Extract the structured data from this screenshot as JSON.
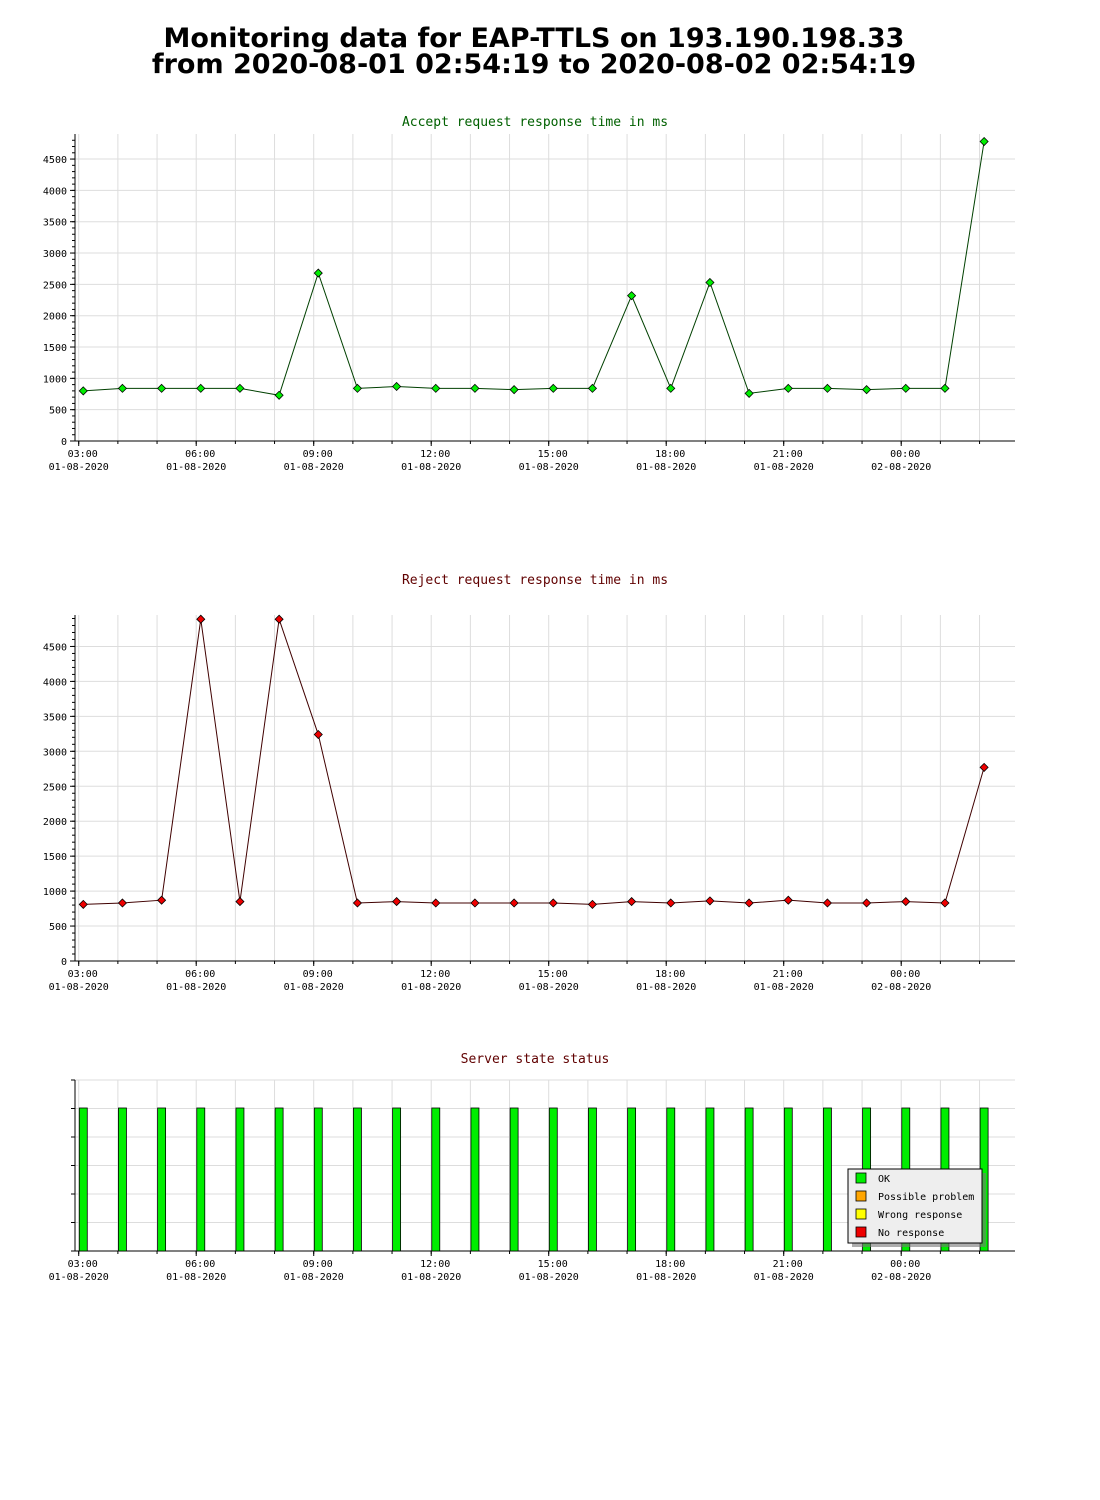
{
  "header": {
    "title_line1": "Monitoring data for EAP-TTLS on 193.190.198.33",
    "title_line2": "from 2020-08-01 02:54:19 to 2020-08-02 02:54:19"
  },
  "colors": {
    "accept_line": "#004000",
    "accept_marker": "#00ee00",
    "reject_line": "#400000",
    "reject_marker": "#ee0000",
    "ok": "#00ee00",
    "possible_problem": "#ffa500",
    "wrong_response": "#ffff00",
    "no_response": "#ee0000",
    "accept_title": "#006000",
    "reject_title": "#600000",
    "grid": "#dddddd"
  },
  "x_ticks": [
    {
      "time": "03:00",
      "date": "01-08-2020"
    },
    {
      "time": "06:00",
      "date": "01-08-2020"
    },
    {
      "time": "09:00",
      "date": "01-08-2020"
    },
    {
      "time": "12:00",
      "date": "01-08-2020"
    },
    {
      "time": "15:00",
      "date": "01-08-2020"
    },
    {
      "time": "18:00",
      "date": "01-08-2020"
    },
    {
      "time": "21:00",
      "date": "01-08-2020"
    },
    {
      "time": "00:00",
      "date": "02-08-2020"
    }
  ],
  "chart_data": [
    {
      "type": "line",
      "title": "Accept request response time in ms",
      "x_start": "2020-08-01 02:54:19",
      "x_end": "2020-08-02 02:54:19",
      "ylim": [
        0,
        4900
      ],
      "y_ticks": [
        0,
        500,
        1000,
        1500,
        2000,
        2500,
        3000,
        3500,
        4000,
        4500
      ],
      "grid": true,
      "x": [
        "03:00",
        "04:00",
        "05:00",
        "06:00",
        "07:00",
        "08:00",
        "09:00",
        "10:00",
        "11:00",
        "12:00",
        "13:00",
        "14:00",
        "15:00",
        "16:00",
        "17:00",
        "18:00",
        "19:00",
        "20:00",
        "21:00",
        "22:00",
        "23:00",
        "00:00",
        "01:00",
        "02:00"
      ],
      "values": [
        800,
        840,
        840,
        840,
        840,
        730,
        2680,
        840,
        870,
        840,
        840,
        820,
        840,
        840,
        2320,
        840,
        2530,
        760,
        840,
        840,
        820,
        840,
        840,
        4780
      ]
    },
    {
      "type": "line",
      "title": "Reject request response time in ms",
      "x_start": "2020-08-01 02:54:19",
      "x_end": "2020-08-02 02:54:19",
      "ylim": [
        0,
        4950
      ],
      "y_ticks": [
        0,
        500,
        1000,
        1500,
        2000,
        2500,
        3000,
        3500,
        4000,
        4500
      ],
      "grid": true,
      "x": [
        "03:00",
        "04:00",
        "05:00",
        "06:00",
        "07:00",
        "08:00",
        "09:00",
        "10:00",
        "11:00",
        "12:00",
        "13:00",
        "14:00",
        "15:00",
        "16:00",
        "17:00",
        "18:00",
        "19:00",
        "20:00",
        "21:00",
        "22:00",
        "23:00",
        "00:00",
        "01:00",
        "02:00"
      ],
      "values": [
        810,
        830,
        870,
        4890,
        850,
        4890,
        3240,
        830,
        850,
        830,
        830,
        830,
        830,
        810,
        850,
        830,
        860,
        830,
        870,
        830,
        830,
        850,
        830,
        2770
      ]
    },
    {
      "type": "bar",
      "title": "Server state status",
      "x_start": "2020-08-01 02:54:19",
      "x_end": "2020-08-02 02:54:19",
      "grid": true,
      "legend_position": "bottom-right",
      "legend": [
        "OK",
        "Possible problem",
        "Wrong response",
        "No response"
      ],
      "x": [
        "03:00",
        "04:00",
        "05:00",
        "06:00",
        "07:00",
        "08:00",
        "09:00",
        "10:00",
        "11:00",
        "12:00",
        "13:00",
        "14:00",
        "15:00",
        "16:00",
        "17:00",
        "18:00",
        "19:00",
        "20:00",
        "21:00",
        "22:00",
        "23:00",
        "00:00",
        "01:00",
        "02:00"
      ],
      "states": [
        "OK",
        "OK",
        "OK",
        "OK",
        "OK",
        "OK",
        "OK",
        "OK",
        "OK",
        "OK",
        "OK",
        "OK",
        "OK",
        "OK",
        "OK",
        "OK",
        "OK",
        "OK",
        "OK",
        "OK",
        "OK",
        "OK",
        "OK",
        "OK"
      ]
    }
  ]
}
